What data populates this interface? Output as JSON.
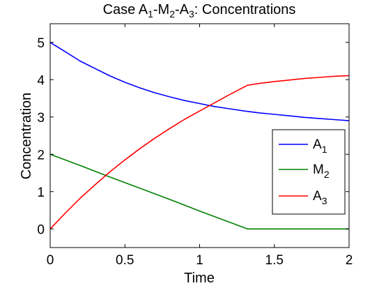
{
  "chart_data": {
    "type": "line",
    "title_parts": [
      {
        "text": "Case A",
        "sub": false
      },
      {
        "text": "1",
        "sub": true
      },
      {
        "text": "-M",
        "sub": false
      },
      {
        "text": "2",
        "sub": true
      },
      {
        "text": "-A",
        "sub": false
      },
      {
        "text": "3",
        "sub": true
      },
      {
        "text": ": Concentrations",
        "sub": false
      }
    ],
    "xlabel": "Time",
    "ylabel": "Concentration",
    "xlim": [
      0,
      2
    ],
    "ylim": [
      -0.5,
      5.5
    ],
    "xticks": [
      0,
      0.5,
      1,
      1.5,
      2
    ],
    "xtick_labels": [
      "0",
      "0.5",
      "1",
      "1.5",
      "2"
    ],
    "yticks": [
      0,
      1,
      2,
      3,
      4,
      5
    ],
    "ytick_labels": [
      "0",
      "1",
      "2",
      "3",
      "4",
      "5"
    ],
    "grid": false,
    "legend_position": "right",
    "series": [
      {
        "name_main": "A",
        "name_sub": "1",
        "color": "#0000ff",
        "x": [
          0,
          0.1,
          0.2,
          0.3,
          0.4,
          0.5,
          0.6,
          0.7,
          0.8,
          0.9,
          1.0,
          1.1,
          1.2,
          1.3,
          1.4,
          1.5,
          1.6,
          1.7,
          1.8,
          1.9,
          2.0
        ],
        "y": [
          5.0,
          4.75,
          4.5,
          4.3,
          4.1,
          3.93,
          3.78,
          3.65,
          3.54,
          3.44,
          3.36,
          3.28,
          3.22,
          3.16,
          3.11,
          3.07,
          3.03,
          2.99,
          2.96,
          2.93,
          2.9
        ]
      },
      {
        "name_main": "M",
        "name_sub": "2",
        "color": "#008000",
        "x": [
          0,
          0.2,
          0.4,
          0.6,
          0.8,
          1.0,
          1.2,
          1.32,
          1.5,
          1.75,
          2.0
        ],
        "y": [
          2.0,
          1.7,
          1.39,
          1.09,
          0.79,
          0.48,
          0.18,
          0.0,
          0.0,
          0.0,
          0.0
        ]
      },
      {
        "name_main": "A",
        "name_sub": "3",
        "color": "#ff0000",
        "x": [
          0,
          0.1,
          0.2,
          0.3,
          0.4,
          0.5,
          0.6,
          0.7,
          0.8,
          0.9,
          1.0,
          1.1,
          1.2,
          1.32,
          1.4,
          1.5,
          1.6,
          1.7,
          1.8,
          1.9,
          2.0
        ],
        "y": [
          0.0,
          0.42,
          0.82,
          1.18,
          1.53,
          1.85,
          2.15,
          2.43,
          2.69,
          2.94,
          3.16,
          3.38,
          3.6,
          3.85,
          3.9,
          3.95,
          3.99,
          4.03,
          4.06,
          4.09,
          4.11
        ]
      }
    ]
  }
}
